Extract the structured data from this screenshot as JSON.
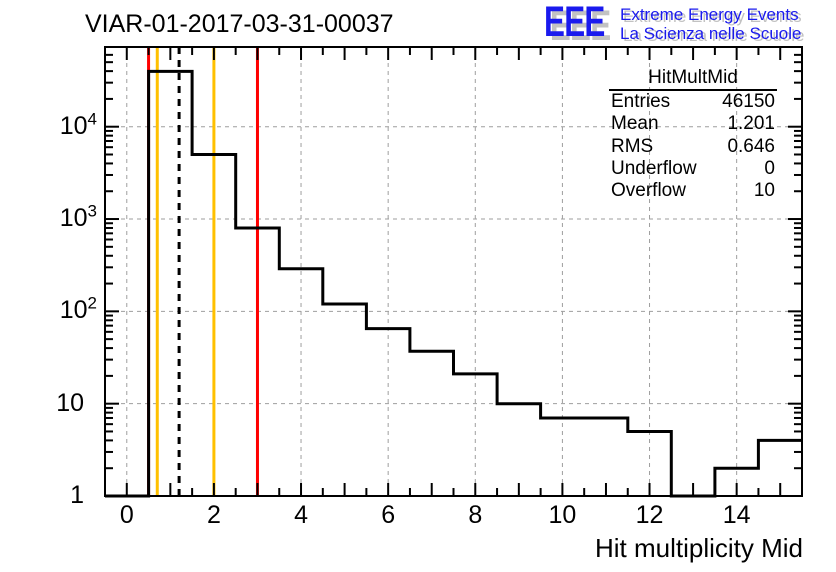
{
  "page_title": "VIAR-01-2017-03-31-00037",
  "logo": {
    "initials": "EEE",
    "line1": "Extreme Energy Events",
    "line2": "La Scienza nelle Scuole",
    "color": "#1a1aee",
    "shadow_color": "#c2c2c2"
  },
  "stats_box": {
    "header": "HitMultMid",
    "rows": [
      {
        "label": "Entries",
        "value": "46150"
      },
      {
        "label": "Mean",
        "value": "1.201"
      },
      {
        "label": "RMS",
        "value": "0.646"
      },
      {
        "label": "Underflow",
        "value": "0"
      },
      {
        "label": "Overflow",
        "value": "10"
      }
    ]
  },
  "chart_data": {
    "type": "bar",
    "title": "VIAR-01-2017-03-31-00037",
    "xlabel": "Hit multiplicity Mid",
    "ylabel": "",
    "y_scale": "log",
    "x_range": [
      -0.5,
      15.5
    ],
    "y_range": [
      1,
      73000
    ],
    "grid": true,
    "legend": "none",
    "bin_centers": [
      0,
      1,
      2,
      3,
      4,
      5,
      6,
      7,
      8,
      9,
      10,
      11,
      12,
      13,
      14,
      15
    ],
    "counts": [
      0,
      39770,
      5000,
      800,
      290,
      120,
      65,
      37,
      21,
      10,
      7,
      7,
      5,
      0,
      2,
      4
    ],
    "grid_x": [
      0,
      2,
      4,
      6,
      8,
      10,
      12,
      14
    ],
    "grid_y": [
      10,
      100,
      1000,
      10000
    ],
    "x_ticks": [
      {
        "v": 0,
        "label": "0"
      },
      {
        "v": 2,
        "label": "2"
      },
      {
        "v": 4,
        "label": "4"
      },
      {
        "v": 6,
        "label": "6"
      },
      {
        "v": 8,
        "label": "8"
      },
      {
        "v": 10,
        "label": "10"
      },
      {
        "v": 12,
        "label": "12"
      },
      {
        "v": 14,
        "label": "14"
      }
    ],
    "y_ticks": [
      {
        "v": 1,
        "label": "1",
        "exp": ""
      },
      {
        "v": 10,
        "label": "10",
        "exp": ""
      },
      {
        "v": 100,
        "label": "10",
        "exp": "2"
      },
      {
        "v": 1000,
        "label": "10",
        "exp": "3"
      },
      {
        "v": 10000,
        "label": "10",
        "exp": "4"
      }
    ],
    "marker_lines": [
      {
        "x": 0.5,
        "color": "#ff0000",
        "style": "solid",
        "name": "red-marker-line-left"
      },
      {
        "x": 0.7,
        "color": "#ffc000",
        "style": "solid",
        "name": "orange-marker-line-left"
      },
      {
        "x": 1.201,
        "color": "#000000",
        "style": "dashed",
        "name": "mean-dashed-line"
      },
      {
        "x": 2,
        "color": "#ffc000",
        "style": "solid",
        "name": "orange-marker-line-right"
      },
      {
        "x": 3,
        "color": "#ff0000",
        "style": "solid",
        "name": "red-marker-line-right"
      }
    ],
    "line_color": "#000000",
    "grid_color": "#9e9e9e"
  }
}
